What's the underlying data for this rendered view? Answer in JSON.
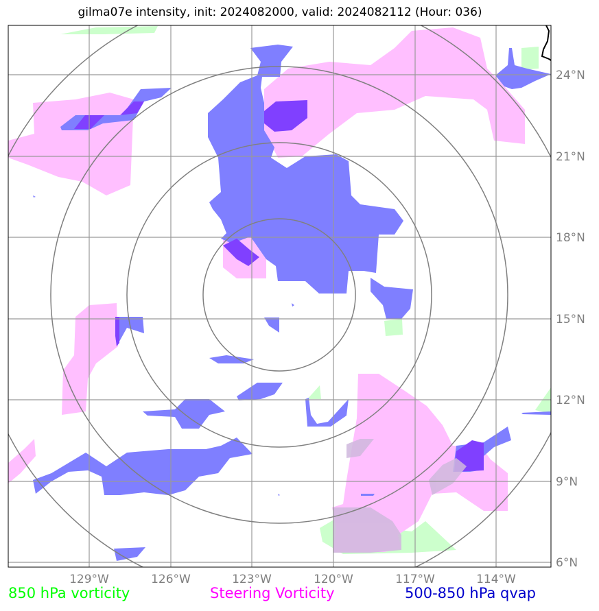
{
  "title": "gilma07e intensity, init: 2024082000, valid: 2024082112 (Hour: 036)",
  "map": {
    "lon_ticks": [
      "129°W",
      "126°W",
      "123°W",
      "120°W",
      "117°W",
      "114°W"
    ],
    "lat_ticks": [
      "24°N",
      "21°N",
      "18°N",
      "15°N",
      "12°N",
      "9°N",
      "6°N"
    ],
    "colors": {
      "vorticity_850": "#ccffcc",
      "steering_vorticity": "#ffbfff",
      "qvap_500_850": "#7f7fff",
      "overlap": "#8040ff",
      "grid": "#999999",
      "range_rings": "#808080"
    }
  },
  "legend": {
    "item1": "850 hPa vorticity",
    "item2": "Steering Vorticity",
    "item3": "500-850 hPa qvap"
  }
}
